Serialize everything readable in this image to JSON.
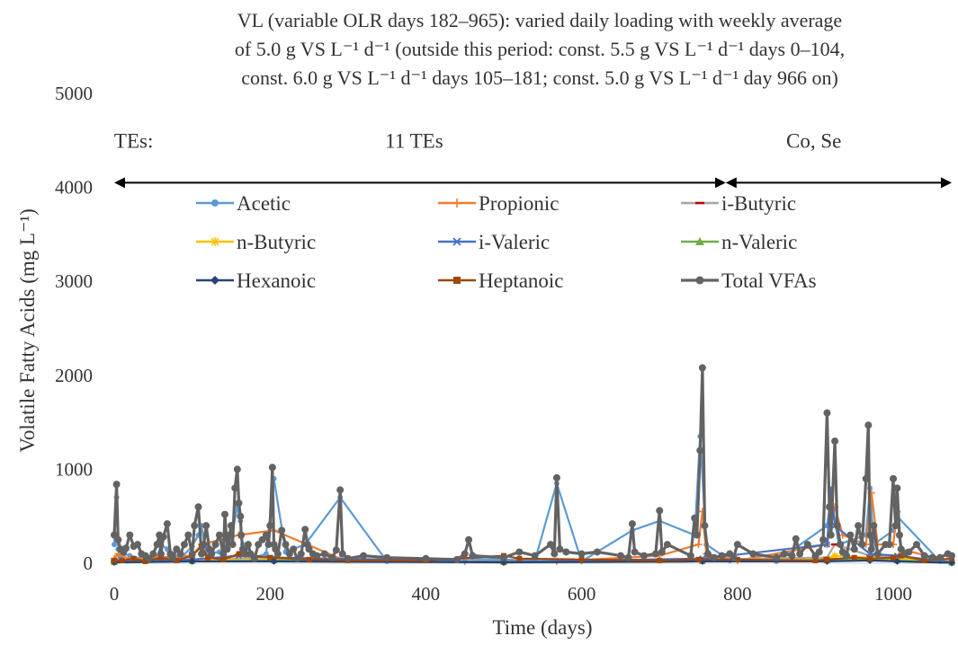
{
  "chart_data": {
    "type": "line",
    "title_lines": [
      "VL (variable OLR days 182–965): varied daily loading with weekly average",
      "of 5.0 g VS L⁻¹ d⁻¹ (outside this period: const. 5.5 g VS L⁻¹ d⁻¹ days 0–104,",
      "const. 6.0 g VS L⁻¹ d⁻¹ days 105–181;  const. 5.0 g VS L⁻¹ d⁻¹ day 966 on)"
    ],
    "xlabel": "Time (days)",
    "ylabel": "Volatile Fatty Acids (mg L⁻¹)",
    "xlim": [
      0,
      1075
    ],
    "ylim": [
      0,
      5000
    ],
    "x_ticks": [
      0,
      200,
      400,
      600,
      800,
      1000
    ],
    "y_ticks": [
      0,
      1000,
      2000,
      3000,
      4000,
      5000
    ],
    "grid": false,
    "legend_position": "upper-center-inside",
    "annotations": [
      {
        "label": "TEs:",
        "x": 25,
        "y": 4500
      },
      {
        "label": "11 TEs",
        "x": 385,
        "y": 4500
      },
      {
        "label": "Co, Se",
        "x": 898,
        "y": 4500
      }
    ],
    "periods": [
      {
        "start": 0,
        "end": 785
      },
      {
        "start": 785,
        "end": 1075
      }
    ],
    "series": [
      {
        "name": "Acetic",
        "color": "#5B9BD5",
        "marker": "circle",
        "x": [
          0,
          3,
          5,
          8,
          12,
          20,
          35,
          55,
          60,
          68,
          85,
          100,
          108,
          112,
          118,
          135,
          150,
          158,
          162,
          165,
          175,
          195,
          205,
          220,
          245,
          290,
          350,
          450,
          540,
          568,
          600,
          665,
          700,
          745,
          752,
          760,
          790,
          850,
          915,
          920,
          930,
          965,
          970,
          975,
          1000,
          1005,
          1060,
          1075
        ],
        "y": [
          200,
          700,
          150,
          60,
          100,
          80,
          50,
          60,
          200,
          150,
          50,
          180,
          300,
          400,
          100,
          120,
          250,
          600,
          450,
          200,
          50,
          100,
          900,
          120,
          200,
          700,
          20,
          50,
          30,
          850,
          20,
          350,
          450,
          300,
          1350,
          200,
          30,
          20,
          400,
          700,
          200,
          300,
          800,
          200,
          350,
          500,
          20,
          10
        ]
      },
      {
        "name": "Propionic",
        "color": "#ED7D31",
        "marker": "plus",
        "x": [
          0,
          5,
          20,
          55,
          100,
          112,
          160,
          205,
          290,
          450,
          568,
          700,
          750,
          755,
          760,
          800,
          915,
          925,
          935,
          965,
          972,
          980,
          1000,
          1005,
          1010,
          1075
        ],
        "y": [
          50,
          100,
          40,
          60,
          80,
          200,
          300,
          350,
          50,
          20,
          20,
          80,
          200,
          550,
          100,
          30,
          200,
          600,
          300,
          200,
          750,
          200,
          200,
          550,
          150,
          10
        ]
      },
      {
        "name": "i-Butyric",
        "color": "#A5A5A5",
        "marker": "dash",
        "x": [
          0,
          100,
          205,
          500,
          755,
          915,
          925,
          970,
          1005,
          1075
        ],
        "y": [
          20,
          40,
          60,
          15,
          40,
          60,
          200,
          80,
          60,
          10
        ]
      },
      {
        "name": "n-Butyric",
        "color": "#FFC000",
        "marker": "star",
        "x": [
          0,
          100,
          205,
          500,
          755,
          915,
          925,
          970,
          1005,
          1075
        ],
        "y": [
          15,
          30,
          40,
          10,
          30,
          40,
          80,
          60,
          50,
          10
        ]
      },
      {
        "name": "i-Valeric",
        "color": "#4472C4",
        "marker": "x",
        "x": [
          0,
          100,
          160,
          205,
          500,
          755,
          915,
          920,
          925,
          970,
          1005,
          1075
        ],
        "y": [
          20,
          40,
          80,
          60,
          15,
          50,
          200,
          800,
          400,
          100,
          80,
          10
        ]
      },
      {
        "name": "n-Valeric",
        "color": "#70AD47",
        "marker": "triangle",
        "x": [
          0,
          100,
          205,
          500,
          755,
          915,
          970,
          1005,
          1075
        ],
        "y": [
          10,
          20,
          30,
          10,
          20,
          30,
          40,
          30,
          5
        ]
      },
      {
        "name": "Hexanoic",
        "color": "#264478",
        "marker": "diamond",
        "x": [
          0,
          100,
          205,
          500,
          755,
          915,
          970,
          1005,
          1075
        ],
        "y": [
          10,
          20,
          20,
          10,
          20,
          20,
          30,
          20,
          5
        ]
      },
      {
        "name": "Heptanoic",
        "color": "#9E480E",
        "marker": "square",
        "x": [
          0,
          10,
          25,
          40,
          60,
          80,
          100,
          112,
          120,
          140,
          160,
          200,
          250,
          300,
          400,
          500,
          520,
          600,
          700,
          750,
          800,
          900,
          915,
          950,
          970,
          1000,
          1010,
          1040,
          1075
        ],
        "y": [
          30,
          30,
          50,
          20,
          60,
          30,
          80,
          180,
          60,
          40,
          100,
          60,
          40,
          30,
          30,
          80,
          50,
          40,
          30,
          40,
          40,
          30,
          40,
          60,
          50,
          60,
          80,
          30,
          50
        ]
      },
      {
        "name": "Total VFAs",
        "color": "#636363",
        "marker": "circle",
        "x": [
          0,
          3,
          5,
          8,
          12,
          15,
          20,
          25,
          30,
          35,
          40,
          45,
          50,
          55,
          58,
          60,
          63,
          68,
          72,
          75,
          80,
          85,
          90,
          95,
          100,
          103,
          108,
          112,
          115,
          118,
          122,
          125,
          130,
          135,
          140,
          142,
          145,
          148,
          150,
          152,
          155,
          158,
          160,
          162,
          163,
          165,
          168,
          172,
          175,
          180,
          185,
          190,
          195,
          198,
          200,
          203,
          205,
          207,
          210,
          215,
          220,
          225,
          230,
          235,
          240,
          245,
          248,
          250,
          255,
          260,
          270,
          280,
          285,
          290,
          293,
          300,
          320,
          350,
          400,
          440,
          450,
          455,
          460,
          500,
          520,
          540,
          560,
          565,
          568,
          572,
          580,
          600,
          620,
          650,
          660,
          665,
          668,
          680,
          695,
          700,
          703,
          710,
          740,
          745,
          748,
          752,
          755,
          758,
          762,
          770,
          780,
          790,
          795,
          800,
          820,
          850,
          860,
          870,
          875,
          880,
          890,
          900,
          905,
          910,
          915,
          918,
          920,
          925,
          928,
          932,
          935,
          940,
          945,
          950,
          955,
          960,
          965,
          968,
          970,
          972,
          975,
          980,
          990,
          995,
          1000,
          1003,
          1005,
          1008,
          1010,
          1015,
          1020,
          1030,
          1040,
          1050,
          1060,
          1070,
          1075
        ],
        "y": [
          300,
          840,
          250,
          150,
          120,
          160,
          300,
          180,
          200,
          100,
          80,
          50,
          100,
          200,
          300,
          100,
          280,
          420,
          100,
          60,
          150,
          100,
          200,
          300,
          100,
          400,
          600,
          100,
          200,
          400,
          150,
          100,
          200,
          300,
          100,
          520,
          150,
          300,
          400,
          200,
          800,
          1000,
          640,
          500,
          300,
          150,
          100,
          200,
          100,
          50,
          200,
          250,
          300,
          200,
          400,
          1020,
          200,
          150,
          100,
          350,
          200,
          100,
          150,
          50,
          100,
          360,
          200,
          150,
          100,
          80,
          100,
          60,
          140,
          780,
          100,
          50,
          80,
          60,
          50,
          40,
          100,
          250,
          80,
          60,
          120,
          80,
          200,
          100,
          910,
          150,
          120,
          100,
          120,
          80,
          60,
          420,
          120,
          80,
          100,
          560,
          120,
          200,
          80,
          480,
          300,
          1200,
          2080,
          400,
          100,
          60,
          80,
          100,
          60,
          200,
          100,
          60,
          100,
          80,
          260,
          100,
          200,
          80,
          120,
          250,
          1600,
          600,
          300,
          1300,
          400,
          200,
          120,
          80,
          300,
          150,
          400,
          200,
          900,
          1470,
          300,
          150,
          400,
          100,
          200,
          200,
          900,
          400,
          800,
          300,
          150,
          100,
          120,
          200,
          80,
          60,
          60,
          100,
          80
        ]
      }
    ]
  }
}
